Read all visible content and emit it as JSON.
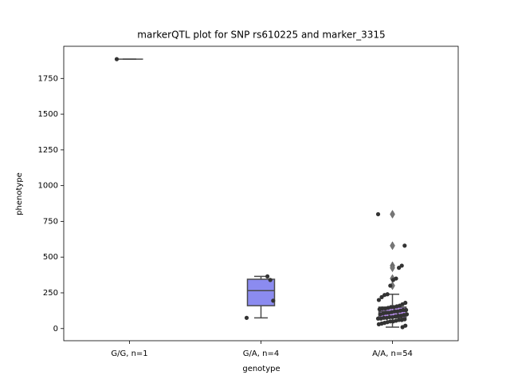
{
  "chart_data": {
    "type": "box",
    "title": "markerQTL plot for SNP rs610225 and marker_3315",
    "x_label": "genotype",
    "y_label": "phenotype",
    "categories": [
      "G/G, n=1",
      "G/A, n=4",
      "A/A, n=54"
    ],
    "boxes": [
      {
        "whislo": 1885,
        "q1": 1885,
        "med": 1885,
        "q3": 1885,
        "whishi": 1885,
        "fliers": [],
        "color": "#8b8bf0"
      },
      {
        "whislo": 75,
        "q1": 160,
        "med": 265,
        "q3": 345,
        "whishi": 365,
        "fliers": [],
        "color": "#8b8bf0"
      },
      {
        "whislo": 10,
        "q1": 75,
        "med": 120,
        "q3": 150,
        "whishi": 240,
        "fliers": [
          800,
          580,
          440,
          425,
          350,
          300
        ],
        "color": "#b58be8"
      }
    ],
    "points": [
      [
        1885
      ],
      [
        75,
        195,
        340,
        365
      ],
      [
        800,
        580,
        440,
        425,
        350,
        340,
        300,
        240,
        235,
        220,
        200,
        180,
        170,
        160,
        155,
        150,
        150,
        145,
        140,
        140,
        135,
        130,
        130,
        125,
        120,
        120,
        115,
        110,
        110,
        105,
        100,
        100,
        95,
        90,
        90,
        85,
        80,
        80,
        75,
        75,
        70,
        70,
        65,
        60,
        60,
        55,
        50,
        50,
        45,
        40,
        35,
        30,
        20,
        10
      ]
    ],
    "point_color": "#333333",
    "ylim": [
      -85,
      1975
    ],
    "yticks": [
      0,
      250,
      500,
      750,
      1000,
      1250,
      1500,
      1750
    ]
  }
}
